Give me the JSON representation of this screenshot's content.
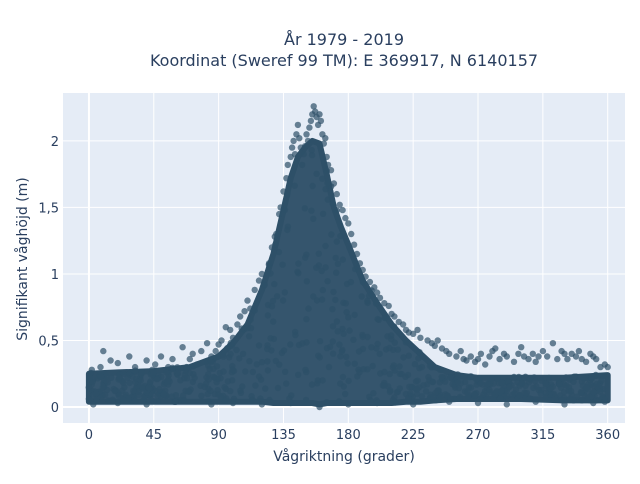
{
  "chart_data": {
    "type": "scatter",
    "title_line1": "År 1979 - 2019",
    "title_line2": "Koordinat (Sweref 99 TM): E 369917, N 6140157",
    "xlabel": "Vågriktning (grader)",
    "ylabel": "Signifikant våghöjd (m)",
    "xlim": [
      -18,
      372
    ],
    "ylim": [
      -0.12,
      2.36
    ],
    "xticks": [
      0,
      45,
      90,
      135,
      180,
      225,
      270,
      315,
      360
    ],
    "xtick_labels": [
      "0",
      "45",
      "90",
      "135",
      "180",
      "225",
      "270",
      "315",
      "360"
    ],
    "yticks": [
      0,
      0.5,
      1,
      1.5,
      2
    ],
    "ytick_labels": [
      "0",
      "0,5",
      "1",
      "1,5",
      "2"
    ],
    "grid": true,
    "series": [
      {
        "color": "#2e5068",
        "marker": "circle",
        "points": [
          [
            0,
            0.15
          ],
          [
            2,
            0.28
          ],
          [
            5,
            0.1
          ],
          [
            8,
            0.3
          ],
          [
            10,
            0.42
          ],
          [
            12,
            0.2
          ],
          [
            15,
            0.35
          ],
          [
            18,
            0.12
          ],
          [
            20,
            0.33
          ],
          [
            24,
            0.25
          ],
          [
            28,
            0.38
          ],
          [
            32,
            0.3
          ],
          [
            36,
            0.2
          ],
          [
            40,
            0.35
          ],
          [
            44,
            0.28
          ],
          [
            46,
            0.32
          ],
          [
            50,
            0.38
          ],
          [
            55,
            0.3
          ],
          [
            58,
            0.36
          ],
          [
            62,
            0.26
          ],
          [
            65,
            0.45
          ],
          [
            70,
            0.36
          ],
          [
            72,
            0.4
          ],
          [
            75,
            0.32
          ],
          [
            78,
            0.42
          ],
          [
            82,
            0.48
          ],
          [
            85,
            0.38
          ],
          [
            88,
            0.42
          ],
          [
            90,
            0.47
          ],
          [
            92,
            0.5
          ],
          [
            95,
            0.6
          ],
          [
            98,
            0.58
          ],
          [
            100,
            0.52
          ],
          [
            103,
            0.62
          ],
          [
            105,
            0.68
          ],
          [
            108,
            0.72
          ],
          [
            110,
            0.8
          ],
          [
            112,
            0.74
          ],
          [
            115,
            0.88
          ],
          [
            118,
            0.95
          ],
          [
            120,
            1.0
          ],
          [
            122,
            0.92
          ],
          [
            125,
            1.08
          ],
          [
            127,
            1.2
          ],
          [
            129,
            1.28
          ],
          [
            130,
            1.3
          ],
          [
            132,
            1.45
          ],
          [
            133,
            1.5
          ],
          [
            135,
            1.62
          ],
          [
            137,
            1.72
          ],
          [
            138,
            1.82
          ],
          [
            140,
            1.88
          ],
          [
            141,
            1.95
          ],
          [
            142,
            2.0
          ],
          [
            143,
            1.9
          ],
          [
            144,
            2.05
          ],
          [
            145,
            2.12
          ],
          [
            146,
            2.02
          ],
          [
            147,
            1.95
          ],
          [
            148,
            1.82
          ],
          [
            149,
            1.9
          ],
          [
            150,
            1.96
          ],
          [
            151,
            2.05
          ],
          [
            152,
            2.0
          ],
          [
            153,
            2.1
          ],
          [
            154,
            2.15
          ],
          [
            155,
            2.2
          ],
          [
            156,
            2.26
          ],
          [
            157,
            2.22
          ],
          [
            158,
            2.18
          ],
          [
            159,
            2.12
          ],
          [
            160,
            2.2
          ],
          [
            161,
            2.15
          ],
          [
            162,
            2.05
          ],
          [
            163,
            1.98
          ],
          [
            164,
            2.02
          ],
          [
            165,
            1.88
          ],
          [
            166,
            1.82
          ],
          [
            168,
            1.78
          ],
          [
            170,
            1.68
          ],
          [
            172,
            1.6
          ],
          [
            174,
            1.52
          ],
          [
            176,
            1.48
          ],
          [
            178,
            1.42
          ],
          [
            180,
            1.38
          ],
          [
            182,
            1.3
          ],
          [
            184,
            1.22
          ],
          [
            186,
            1.15
          ],
          [
            188,
            1.08
          ],
          [
            190,
            1.03
          ],
          [
            192,
            0.98
          ],
          [
            195,
            0.94
          ],
          [
            198,
            0.9
          ],
          [
            200,
            0.86
          ],
          [
            202,
            0.82
          ],
          [
            205,
            0.78
          ],
          [
            208,
            0.76
          ],
          [
            210,
            0.7
          ],
          [
            212,
            0.68
          ],
          [
            215,
            0.64
          ],
          [
            218,
            0.62
          ],
          [
            220,
            0.58
          ],
          [
            222,
            0.56
          ],
          [
            225,
            0.55
          ],
          [
            228,
            0.58
          ],
          [
            230,
            0.52
          ],
          [
            235,
            0.5
          ],
          [
            238,
            0.48
          ],
          [
            240,
            0.46
          ],
          [
            242,
            0.5
          ],
          [
            245,
            0.44
          ],
          [
            248,
            0.42
          ],
          [
            250,
            0.4
          ],
          [
            255,
            0.38
          ],
          [
            258,
            0.42
          ],
          [
            260,
            0.36
          ],
          [
            262,
            0.35
          ],
          [
            265,
            0.38
          ],
          [
            268,
            0.34
          ],
          [
            270,
            0.36
          ],
          [
            272,
            0.4
          ],
          [
            275,
            0.32
          ],
          [
            278,
            0.38
          ],
          [
            280,
            0.42
          ],
          [
            282,
            0.44
          ],
          [
            285,
            0.36
          ],
          [
            288,
            0.4
          ],
          [
            290,
            0.38
          ],
          [
            295,
            0.34
          ],
          [
            298,
            0.4
          ],
          [
            300,
            0.45
          ],
          [
            302,
            0.38
          ],
          [
            305,
            0.36
          ],
          [
            308,
            0.4
          ],
          [
            310,
            0.34
          ],
          [
            312,
            0.38
          ],
          [
            315,
            0.42
          ],
          [
            318,
            0.38
          ],
          [
            322,
            0.48
          ],
          [
            325,
            0.36
          ],
          [
            328,
            0.42
          ],
          [
            330,
            0.4
          ],
          [
            332,
            0.36
          ],
          [
            335,
            0.4
          ],
          [
            338,
            0.38
          ],
          [
            340,
            0.42
          ],
          [
            342,
            0.36
          ],
          [
            345,
            0.34
          ],
          [
            348,
            0.4
          ],
          [
            350,
            0.38
          ],
          [
            352,
            0.36
          ],
          [
            355,
            0.3
          ],
          [
            358,
            0.32
          ],
          [
            360,
            0.3
          ],
          [
            3,
            0.02
          ],
          [
            20,
            0.03
          ],
          [
            40,
            0.02
          ],
          [
            60,
            0.04
          ],
          [
            85,
            0.02
          ],
          [
            100,
            0.03
          ],
          [
            120,
            0.02
          ],
          [
            140,
            0.03
          ],
          [
            160,
            0.0
          ],
          [
            180,
            0.02
          ],
          [
            200,
            0.03
          ],
          [
            225,
            0.02
          ],
          [
            250,
            0.04
          ],
          [
            270,
            0.03
          ],
          [
            290,
            0.02
          ],
          [
            310,
            0.04
          ],
          [
            330,
            0.02
          ],
          [
            350,
            0.03
          ],
          [
            358,
            0.04
          ],
          [
            0,
            0.06
          ]
        ],
        "dense_envelope": {
          "x": [
            0,
            20,
            45,
            70,
            90,
            100,
            110,
            120,
            128,
            135,
            140,
            145,
            150,
            155,
            160,
            165,
            170,
            175,
            180,
            190,
            200,
            210,
            220,
            230,
            240,
            255,
            270,
            300,
            330,
            360
          ],
          "y_low": [
            0.04,
            0.04,
            0.04,
            0.04,
            0.04,
            0.04,
            0.04,
            0.04,
            0.03,
            0.03,
            0.03,
            0.03,
            0.03,
            0.03,
            0.02,
            0.03,
            0.03,
            0.03,
            0.03,
            0.03,
            0.03,
            0.03,
            0.04,
            0.04,
            0.05,
            0.06,
            0.06,
            0.06,
            0.05,
            0.05
          ],
          "y_high": [
            0.25,
            0.26,
            0.27,
            0.3,
            0.38,
            0.48,
            0.62,
            0.88,
            1.15,
            1.48,
            1.72,
            1.88,
            1.95,
            2.0,
            1.98,
            1.75,
            1.5,
            1.35,
            1.22,
            0.95,
            0.78,
            0.62,
            0.5,
            0.4,
            0.3,
            0.24,
            0.22,
            0.22,
            0.22,
            0.24
          ]
        }
      }
    ]
  }
}
